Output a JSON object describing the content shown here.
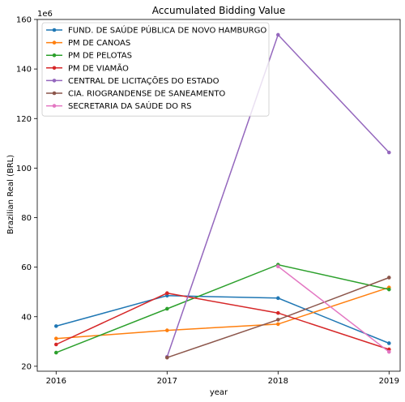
{
  "chart_data": {
    "type": "line",
    "title": "Accumulated Bidding Value",
    "xlabel": "year",
    "ylabel": "Brazilian Real (BRL)",
    "y_offset_label": "1e6",
    "x_ticks": [
      "2016",
      "2017",
      "2018",
      "2019"
    ],
    "y_ticks": [
      "20",
      "40",
      "60",
      "80",
      "100",
      "120",
      "140",
      "160"
    ],
    "xlim": [
      2015.83,
      2019.1
    ],
    "ylim": [
      18,
      160
    ],
    "legend_position": "upper-left",
    "grid": false,
    "series": [
      {
        "name": "FUND. DE SAÚDE PÚBLICA DE NOVO HAMBURGO",
        "color": "#1f77b4",
        "points": [
          {
            "x": 2016,
            "y": 36.2
          },
          {
            "x": 2017,
            "y": 48.5
          },
          {
            "x": 2018,
            "y": 47.5
          },
          {
            "x": 2019,
            "y": 29.3
          }
        ]
      },
      {
        "name": "PM DE CANOAS",
        "color": "#ff7f0e",
        "points": [
          {
            "x": 2016,
            "y": 31.2
          },
          {
            "x": 2017,
            "y": 34.5
          },
          {
            "x": 2018,
            "y": 37.0
          },
          {
            "x": 2019,
            "y": 51.8
          }
        ]
      },
      {
        "name": "PM DE PELOTAS",
        "color": "#2ca02c",
        "points": [
          {
            "x": 2016,
            "y": 25.5
          },
          {
            "x": 2017,
            "y": 43.2
          },
          {
            "x": 2018,
            "y": 61.0
          },
          {
            "x": 2019,
            "y": 51.0
          }
        ]
      },
      {
        "name": "PM DE VIAMÃO",
        "color": "#d62728",
        "points": [
          {
            "x": 2016,
            "y": 28.8
          },
          {
            "x": 2017,
            "y": 49.5
          },
          {
            "x": 2018,
            "y": 41.5
          },
          {
            "x": 2019,
            "y": 26.8
          }
        ]
      },
      {
        "name": "CENTRAL DE LICITAÇÕES DO ESTADO",
        "color": "#9467bd",
        "points": [
          {
            "x": 2017,
            "y": 23.8
          },
          {
            "x": 2018,
            "y": 153.8
          },
          {
            "x": 2019,
            "y": 106.3
          }
        ]
      },
      {
        "name": "CIA. RIOGRANDENSE DE SANEAMENTO",
        "color": "#8c564b",
        "points": [
          {
            "x": 2017,
            "y": 23.5
          },
          {
            "x": 2018,
            "y": 38.8
          },
          {
            "x": 2019,
            "y": 55.8
          }
        ]
      },
      {
        "name": "SECRETARIA DA SAÚDE DO RS",
        "color": "#e377c2",
        "points": [
          {
            "x": 2018,
            "y": 60.3
          },
          {
            "x": 2019,
            "y": 25.8
          }
        ]
      }
    ]
  }
}
